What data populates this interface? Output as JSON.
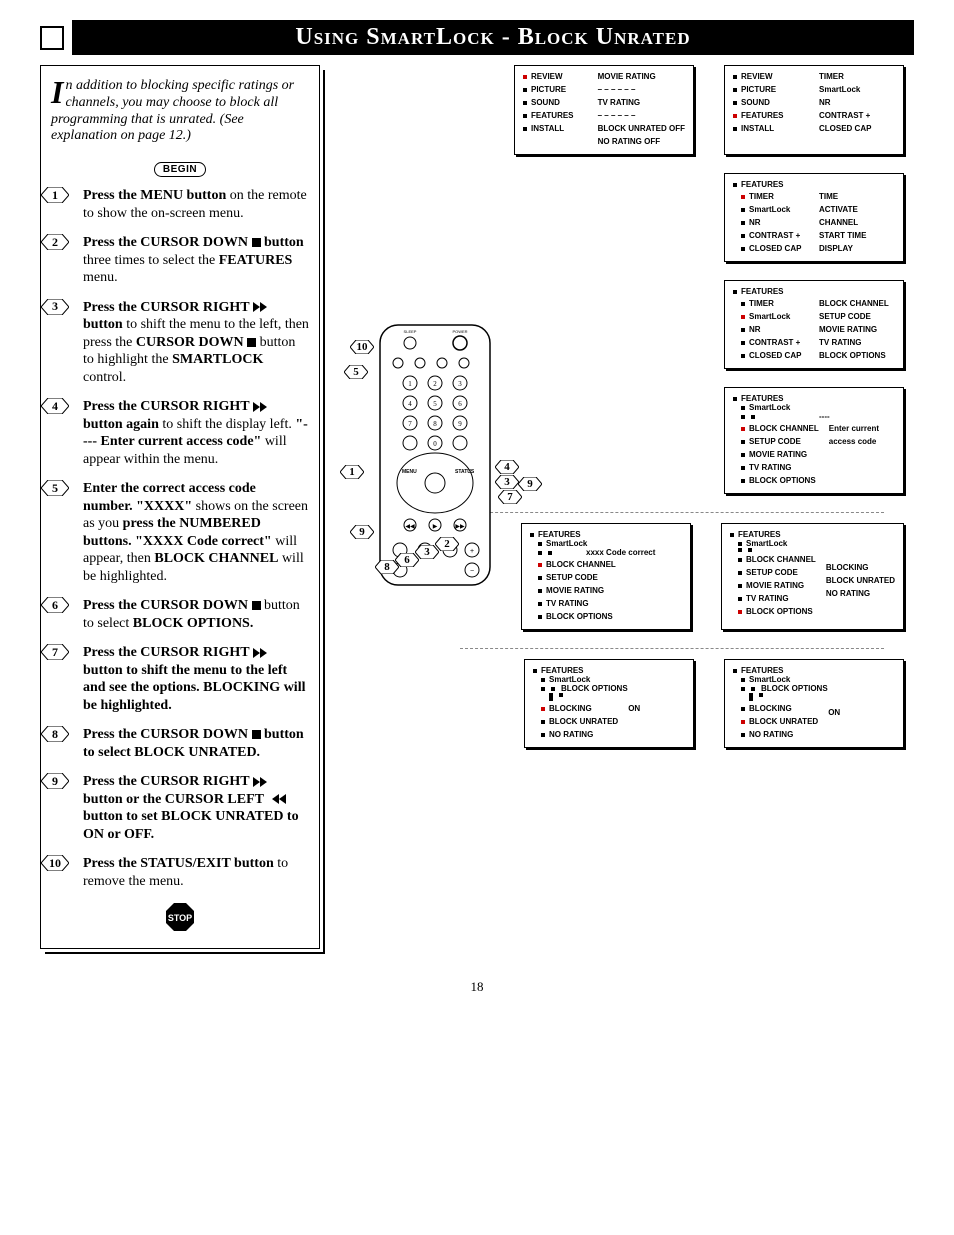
{
  "title": "Using SmartLock - Block Unrated",
  "page_number": "18",
  "begin_label": "BEGIN",
  "stop_label": "STOP",
  "intro": {
    "drop_cap": "I",
    "text": "n addition to blocking specific ratings or channels, you may choose to block all programming that is unrated. (See explanation on page 12.)"
  },
  "steps": [
    {
      "n": "1",
      "html": "<b>Press the MENU button</b> on the remote to show the on-screen menu."
    },
    {
      "n": "2",
      "html": "<b>Press the CURSOR DOWN</b> <span class='icon-square'></span> <b>button</b> three times to select the <b>FEATURES</b> menu."
    },
    {
      "n": "3",
      "html": "<b>Press the CURSOR RIGHT</b> <svg class='icon-inline' viewBox='0 0 18 10'><path d='M0 0 L7 5 L0 10 Z M7 0 L14 5 L7 10 Z' fill='#000'/></svg> <b>button</b> to shift the menu to the left, then press the <b>CURSOR DOWN</b> <span class='icon-square'></span> button to highlight the <b>SMARTLOCK</b> control."
    },
    {
      "n": "4",
      "html": "<b>Press the CURSOR RIGHT</b> <svg class='icon-inline' viewBox='0 0 18 10'><path d='M0 0 L7 5 L0 10 Z M7 0 L14 5 L7 10 Z' fill='#000'/></svg> <b>button again</b> to shift the display left. <b>\"---- Enter current access code\"</b> will appear within the menu."
    },
    {
      "n": "5",
      "html": "<b>Enter the correct access code number. \"XXXX\"</b> shows on the screen as you <b>press the NUMBERED buttons. \"XXXX Code correct\"</b> will appear, then <b>BLOCK CHANNEL</b> will be highlighted."
    },
    {
      "n": "6",
      "html": "<b>Press the CURSOR DOWN</b> <span class='icon-square'></span> button to select <b>BLOCK OPTIONS.</b>"
    },
    {
      "n": "7",
      "html": "<b>Press the CURSOR RIGHT</b> <svg class='icon-inline' viewBox='0 0 18 10'><path d='M0 0 L7 5 L0 10 Z M7 0 L14 5 L7 10 Z' fill='#000'/></svg> <b>button to shift the menu to the left and see the options. BLOCKING will be highlighted.</b>"
    },
    {
      "n": "8",
      "html": "<b>Press the CURSOR DOWN</b> <span class='icon-square'></span> <b>button to select BLOCK UNRATED.</b>"
    },
    {
      "n": "9",
      "html": "<b>Press the CURSOR RIGHT</b> <svg class='icon-inline' viewBox='0 0 18 10'><path d='M0 0 L7 5 L0 10 Z M7 0 L14 5 L7 10 Z' fill='#000'/></svg> <b>button or the CURSOR LEFT</b> <svg class='icon-inline' viewBox='0 0 18 10'><path d='M18 0 L11 5 L18 10 Z M11 0 L4 5 L11 10 Z' fill='#000'/></svg> <b>button to set BLOCK UNRATED to ON or OFF.</b>"
    },
    {
      "n": "10",
      "html": "<b>Press the STATUS/EXIT button</b> to remove the menu."
    }
  ],
  "panels": {
    "p1": {
      "left": [
        "REVIEW",
        "PICTURE",
        "SOUND",
        "FEATURES",
        "INSTALL"
      ],
      "right": [
        "MOVIE RATING",
        "– – – – – –",
        "TV RATING",
        "– – – – – –",
        "BLOCK UNRATED OFF",
        "NO RATING    OFF"
      ]
    },
    "p2": {
      "left": [
        "REVIEW",
        "PICTURE",
        "SOUND",
        "FEATURES",
        "INSTALL"
      ],
      "right": [
        "TIMER",
        "SmartLock",
        "NR",
        "CONTRAST +",
        "CLOSED CAP"
      ]
    },
    "p3": {
      "header": "FEATURES",
      "left": [
        "TIMER",
        "SmartLock",
        "NR",
        "CONTRAST +",
        "CLOSED CAP"
      ],
      "right": [
        "TIME",
        "ACTIVATE",
        "CHANNEL",
        "START TIME",
        "DISPLAY"
      ]
    },
    "p4": {
      "header": "FEATURES",
      "left": [
        "TIMER",
        "SmartLock",
        "NR",
        "CONTRAST +",
        "CLOSED CAP"
      ],
      "right": [
        "BLOCK CHANNEL",
        "SETUP CODE",
        "MOVIE RATING",
        "TV RATING",
        "BLOCK OPTIONS"
      ]
    },
    "p5": {
      "header": "FEATURES",
      "sub": "SmartLock",
      "left": [
        "BLOCK CHANNEL",
        "SETUP CODE",
        "MOVIE RATING",
        "TV RATING",
        "BLOCK OPTIONS"
      ],
      "right_top": "----",
      "right": [
        "Enter current",
        "access code"
      ]
    },
    "p6": {
      "header": "FEATURES",
      "sub": "SmartLock",
      "note": "xxxx Code correct",
      "left": [
        "BLOCK CHANNEL",
        "SETUP CODE",
        "MOVIE RATING",
        "TV RATING",
        "BLOCK OPTIONS"
      ]
    },
    "p7": {
      "header": "FEATURES",
      "sub": "SmartLock",
      "left": [
        "BLOCK CHANNEL",
        "SETUP CODE",
        "MOVIE RATING",
        "TV RATING",
        "BLOCK OPTIONS"
      ],
      "right": [
        "",
        "",
        "BLOCKING",
        "BLOCK UNRATED",
        "NO RATING"
      ]
    },
    "p8": {
      "header": "FEATURES",
      "sub": "SmartLock",
      "sub2": "BLOCK OPTIONS",
      "left": [
        "BLOCKING",
        "BLOCK UNRATED",
        "NO RATING"
      ],
      "right": [
        "ON",
        "",
        ""
      ]
    },
    "p9": {
      "header": "FEATURES",
      "sub": "SmartLock",
      "sub2": "BLOCK OPTIONS",
      "left": [
        "BLOCKING",
        "BLOCK UNRATED",
        "NO RATING"
      ],
      "right": [
        "",
        "ON",
        ""
      ]
    }
  }
}
